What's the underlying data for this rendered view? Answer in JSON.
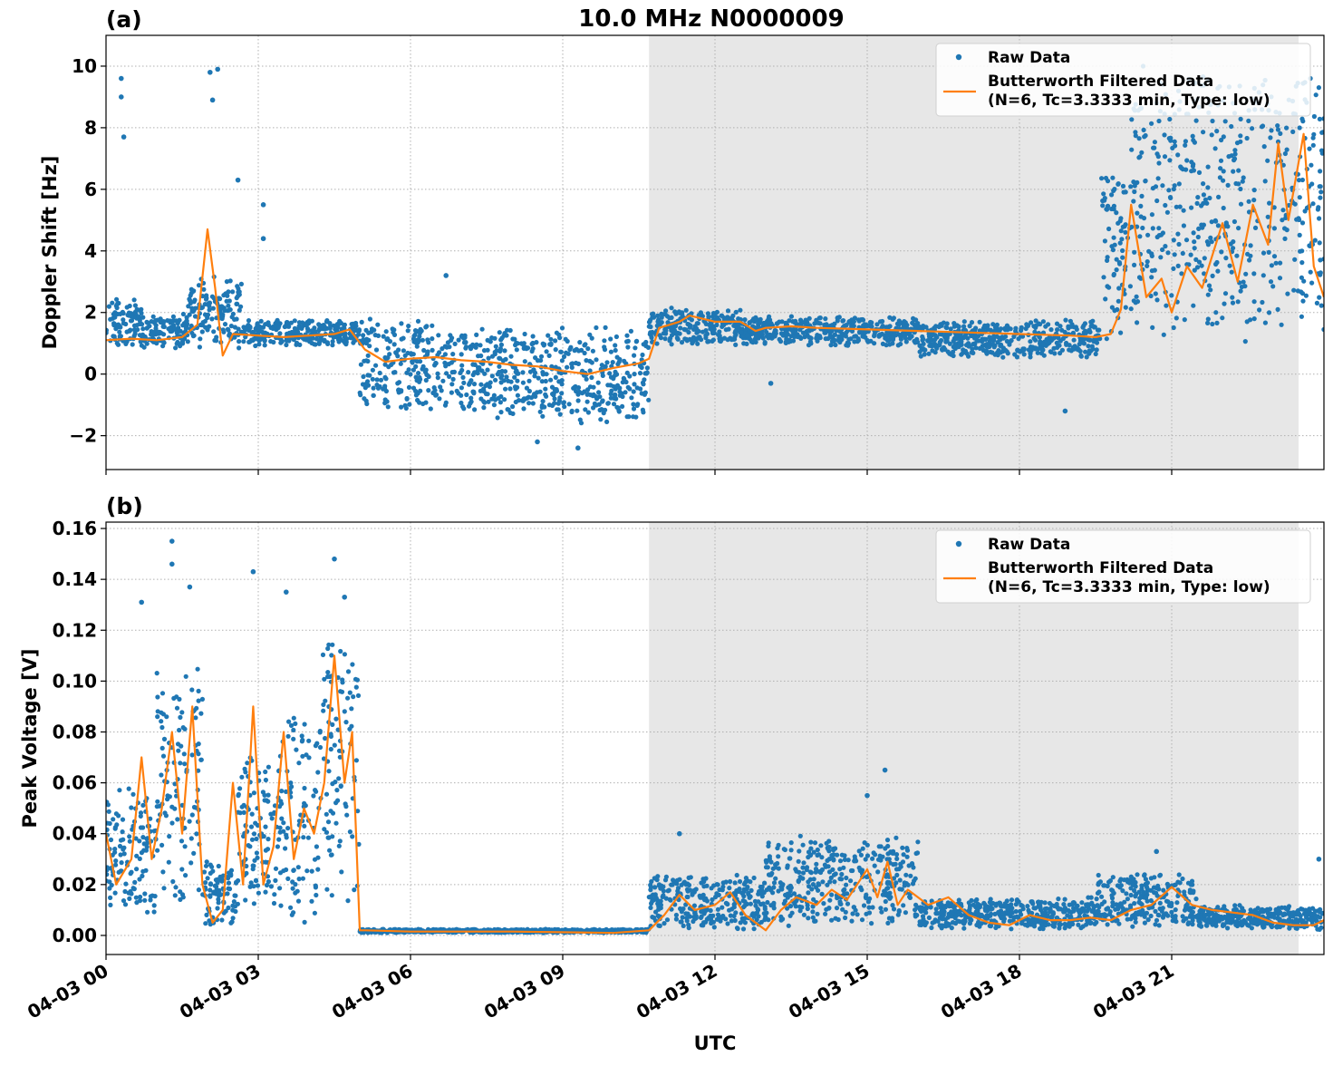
{
  "figure": {
    "title": "10.0 MHz N0000009",
    "xlabel": "UTC"
  },
  "chart_data": [
    {
      "panel": "(a)",
      "type": "scatter",
      "title": "10.0 MHz N0000009",
      "xlabel": "",
      "ylabel": "Doppler Shift [Hz]",
      "x_unit": "hours UTC on 04-03",
      "xlim": [
        0,
        24
      ],
      "ylim": [
        -3.1,
        11.0
      ],
      "yticks": [
        -2,
        0,
        2,
        4,
        6,
        8,
        10
      ],
      "ytick_labels": [
        "−2",
        "0",
        "2",
        "4",
        "6",
        "8",
        "10"
      ],
      "grid": true,
      "legend_position": "top-right",
      "shaded_interval": [
        10.7,
        23.5
      ],
      "series": [
        {
          "name": "Raw Data",
          "style": "points",
          "color": "#1f77b4",
          "segments": [
            {
              "x": [
                0,
                0.7
              ],
              "low": 0.8,
              "high": 2.6
            },
            {
              "x": [
                0.7,
                1.6
              ],
              "low": 0.8,
              "high": 2.0
            },
            {
              "x": [
                1.6,
                2.7
              ],
              "low": 0.8,
              "high": 3.2
            },
            {
              "x": [
                2.7,
                5.0
              ],
              "low": 0.9,
              "high": 1.8
            },
            {
              "x": [
                5.0,
                6.5
              ],
              "low": -1.3,
              "high": 1.9
            },
            {
              "x": [
                6.5,
                8.5
              ],
              "low": -1.5,
              "high": 1.6
            },
            {
              "x": [
                8.5,
                10.7
              ],
              "low": -1.7,
              "high": 1.6
            },
            {
              "x": [
                10.7,
                12.5
              ],
              "low": 0.9,
              "high": 2.2
            },
            {
              "x": [
                12.5,
                16.0
              ],
              "low": 0.9,
              "high": 1.9
            },
            {
              "x": [
                16.0,
                19.6
              ],
              "low": 0.5,
              "high": 1.8
            },
            {
              "x": [
                19.6,
                20.2
              ],
              "low": 1.0,
              "high": 7.0
            },
            {
              "x": [
                20.2,
                24.0
              ],
              "low": 1.0,
              "high": 10.2
            }
          ],
          "outliers": [
            {
              "x": 0.3,
              "y": 9.6
            },
            {
              "x": 0.35,
              "y": 7.7
            },
            {
              "x": 0.3,
              "y": 9.0
            },
            {
              "x": 2.05,
              "y": 9.8
            },
            {
              "x": 2.2,
              "y": 9.9
            },
            {
              "x": 2.1,
              "y": 8.9
            },
            {
              "x": 2.6,
              "y": 6.3
            },
            {
              "x": 3.1,
              "y": 5.5
            },
            {
              "x": 3.1,
              "y": 4.4
            },
            {
              "x": 6.7,
              "y": 3.2
            },
            {
              "x": 13.1,
              "y": -0.3
            },
            {
              "x": 18.9,
              "y": -1.2
            },
            {
              "x": 9.3,
              "y": -2.4
            },
            {
              "x": 8.5,
              "y": -2.2
            }
          ]
        },
        {
          "name": "Butterworth Filtered Data\n(N=6, Tc=3.3333 min, Type: low)",
          "style": "line",
          "color": "#ff7f0e",
          "x": [
            0,
            0.5,
            1.0,
            1.5,
            1.8,
            2.0,
            2.15,
            2.3,
            2.5,
            3.0,
            3.5,
            4.0,
            4.5,
            4.8,
            5.1,
            5.5,
            6.0,
            6.5,
            7.0,
            7.5,
            8.0,
            8.5,
            9.0,
            9.5,
            10.0,
            10.5,
            10.7,
            10.9,
            11.3,
            11.5,
            12.0,
            12.5,
            12.8,
            13.0,
            13.5,
            14.0,
            15.0,
            16.0,
            17.0,
            18.0,
            19.0,
            19.5,
            19.8,
            20.0,
            20.2,
            20.5,
            20.8,
            21.0,
            21.3,
            21.6,
            22.0,
            22.3,
            22.6,
            22.9,
            23.1,
            23.3,
            23.6,
            23.8,
            24.0
          ],
          "y": [
            1.1,
            1.15,
            1.1,
            1.2,
            1.6,
            4.7,
            2.8,
            0.6,
            1.3,
            1.25,
            1.2,
            1.25,
            1.3,
            1.45,
            0.8,
            0.4,
            0.5,
            0.55,
            0.45,
            0.4,
            0.3,
            0.25,
            0.1,
            0.0,
            0.2,
            0.35,
            0.5,
            1.5,
            1.7,
            1.9,
            1.7,
            1.7,
            1.4,
            1.5,
            1.55,
            1.5,
            1.45,
            1.4,
            1.35,
            1.3,
            1.25,
            1.2,
            1.3,
            2.1,
            5.5,
            2.5,
            3.1,
            2.0,
            3.5,
            2.8,
            4.9,
            3.0,
            5.5,
            4.2,
            7.5,
            5.0,
            7.8,
            3.5,
            2.5
          ]
        }
      ]
    },
    {
      "panel": "(b)",
      "type": "scatter",
      "title": "",
      "xlabel": "UTC",
      "ylabel": "Peak Voltage [V]",
      "x_unit": "hours UTC on 04-03",
      "xlim": [
        0,
        24
      ],
      "ylim": [
        -0.0075,
        0.1625
      ],
      "yticks": [
        0.0,
        0.02,
        0.04,
        0.06,
        0.08,
        0.1,
        0.12,
        0.14,
        0.16
      ],
      "ytick_labels": [
        "0.00",
        "0.02",
        "0.04",
        "0.06",
        "0.08",
        "0.10",
        "0.12",
        "0.14",
        "0.16"
      ],
      "xticks": [
        0,
        3,
        6,
        9,
        12,
        15,
        18,
        21
      ],
      "xtick_labels": [
        "04-03 00",
        "04-03 03",
        "04-03 06",
        "04-03 09",
        "04-03 12",
        "04-03 15",
        "04-03 18",
        "04-03 21"
      ],
      "grid": true,
      "legend_position": "top-right",
      "shaded_interval": [
        10.7,
        23.5
      ],
      "series": [
        {
          "name": "Raw Data",
          "style": "points",
          "color": "#1f77b4",
          "segments": [
            {
              "x": [
                0,
                1.0
              ],
              "low": 0.005,
              "high": 0.06
            },
            {
              "x": [
                1.0,
                1.9
              ],
              "low": 0.01,
              "high": 0.11
            },
            {
              "x": [
                1.9,
                2.6
              ],
              "low": 0.003,
              "high": 0.03
            },
            {
              "x": [
                2.6,
                3.4
              ],
              "low": 0.005,
              "high": 0.075
            },
            {
              "x": [
                3.4,
                4.2
              ],
              "low": 0.005,
              "high": 0.09
            },
            {
              "x": [
                4.2,
                5.0
              ],
              "low": 0.01,
              "high": 0.125
            },
            {
              "x": [
                5.0,
                10.7
              ],
              "low": 0.001,
              "high": 0.0025
            },
            {
              "x": [
                10.7,
                13.0
              ],
              "low": 0.002,
              "high": 0.025
            },
            {
              "x": [
                13.0,
                16.0
              ],
              "low": 0.003,
              "high": 0.04
            },
            {
              "x": [
                16.0,
                19.5
              ],
              "low": 0.002,
              "high": 0.015
            },
            {
              "x": [
                19.5,
                21.5
              ],
              "low": 0.003,
              "high": 0.025
            },
            {
              "x": [
                21.5,
                24.0
              ],
              "low": 0.002,
              "high": 0.012
            }
          ],
          "outliers": [
            {
              "x": 1.3,
              "y": 0.155
            },
            {
              "x": 1.3,
              "y": 0.146
            },
            {
              "x": 1.65,
              "y": 0.137
            },
            {
              "x": 2.9,
              "y": 0.143
            },
            {
              "x": 3.55,
              "y": 0.135
            },
            {
              "x": 4.5,
              "y": 0.148
            },
            {
              "x": 4.7,
              "y": 0.133
            },
            {
              "x": 0.7,
              "y": 0.131
            },
            {
              "x": 11.3,
              "y": 0.04
            },
            {
              "x": 15.35,
              "y": 0.065
            },
            {
              "x": 15.0,
              "y": 0.055
            },
            {
              "x": 20.7,
              "y": 0.033
            },
            {
              "x": 23.9,
              "y": 0.03
            }
          ]
        },
        {
          "name": "Butterworth Filtered Data\n(N=6, Tc=3.3333 min, Type: low)",
          "style": "line",
          "color": "#ff7f0e",
          "x": [
            0,
            0.2,
            0.5,
            0.7,
            0.9,
            1.1,
            1.3,
            1.5,
            1.7,
            1.9,
            2.1,
            2.3,
            2.5,
            2.7,
            2.9,
            3.1,
            3.3,
            3.5,
            3.7,
            3.9,
            4.1,
            4.3,
            4.5,
            4.7,
            4.85,
            5.0,
            5.1,
            6.0,
            8.0,
            10.0,
            10.7,
            11.0,
            11.3,
            11.6,
            12.0,
            12.3,
            12.6,
            13.0,
            13.3,
            13.6,
            14.0,
            14.3,
            14.6,
            15.0,
            15.2,
            15.4,
            15.6,
            15.8,
            16.2,
            16.6,
            17.0,
            17.4,
            17.8,
            18.2,
            18.6,
            19.0,
            19.4,
            19.8,
            20.2,
            20.6,
            21.0,
            21.4,
            21.8,
            22.2,
            22.6,
            23.0,
            23.4,
            23.8,
            24.0
          ],
          "y": [
            0.04,
            0.02,
            0.03,
            0.07,
            0.03,
            0.05,
            0.08,
            0.04,
            0.09,
            0.02,
            0.005,
            0.01,
            0.06,
            0.02,
            0.09,
            0.02,
            0.035,
            0.08,
            0.03,
            0.05,
            0.04,
            0.06,
            0.11,
            0.06,
            0.08,
            0.002,
            0.002,
            0.0015,
            0.0015,
            0.001,
            0.002,
            0.008,
            0.016,
            0.01,
            0.012,
            0.017,
            0.008,
            0.002,
            0.01,
            0.015,
            0.012,
            0.018,
            0.014,
            0.026,
            0.015,
            0.029,
            0.012,
            0.018,
            0.012,
            0.015,
            0.008,
            0.005,
            0.004,
            0.008,
            0.006,
            0.006,
            0.007,
            0.006,
            0.01,
            0.012,
            0.019,
            0.012,
            0.01,
            0.009,
            0.008,
            0.005,
            0.004,
            0.004,
            0.006
          ]
        }
      ]
    }
  ]
}
